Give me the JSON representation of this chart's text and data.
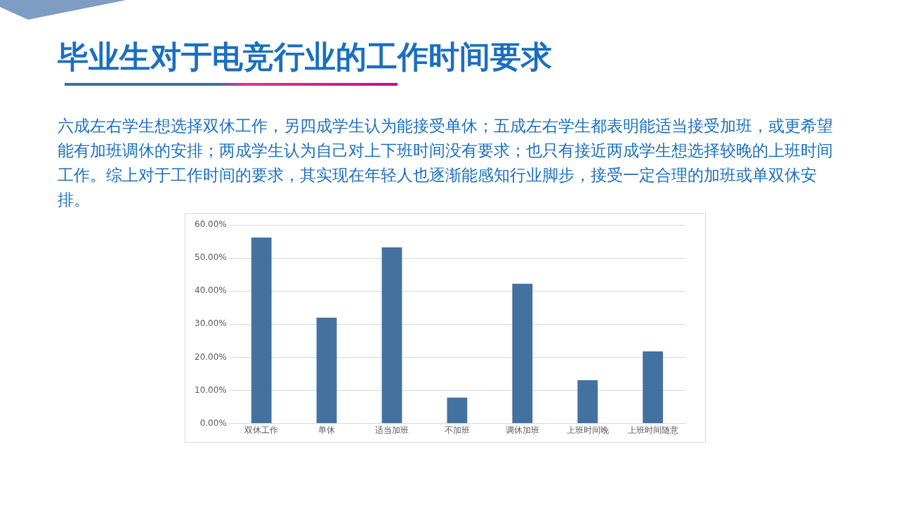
{
  "chart_data": {
    "type": "bar",
    "title": "毕业生对于电竞行业的工作时间要求",
    "subtitle": "六成左右学生想选择双休工作，另四成学生认为能接受单休；五成左右学生都表明能适当接受加班，或更希望能有加班调休的安排；两成学生认为自己对上下班时间没有要求；也只有接近两成学生想选择较晚的上班时间工作。综上对于工作时间的要求，其实现在年轻人也逐渐能感知行业脚步，接受一定合理的加班或单双休安排。",
    "categories": [
      "双休工作",
      "单休",
      "适当加班",
      "不加班",
      "调休加班",
      "上班时间晚",
      "上班时间随意"
    ],
    "values": [
      56.2,
      32.0,
      53.2,
      7.8,
      42.2,
      13.1,
      21.8
    ],
    "color": "#4472a0",
    "ylim": [
      0,
      60
    ],
    "yticks": [
      {
        "value": 0,
        "label": "0.00%"
      },
      {
        "value": 10,
        "label": "10.00%"
      },
      {
        "value": 20,
        "label": "20.00%"
      },
      {
        "value": 30,
        "label": "30.00%"
      },
      {
        "value": 40,
        "label": "40.00%"
      },
      {
        "value": 50,
        "label": "50.00%"
      },
      {
        "value": 60,
        "label": "60.00%"
      }
    ],
    "grid": "y",
    "legend": false
  }
}
